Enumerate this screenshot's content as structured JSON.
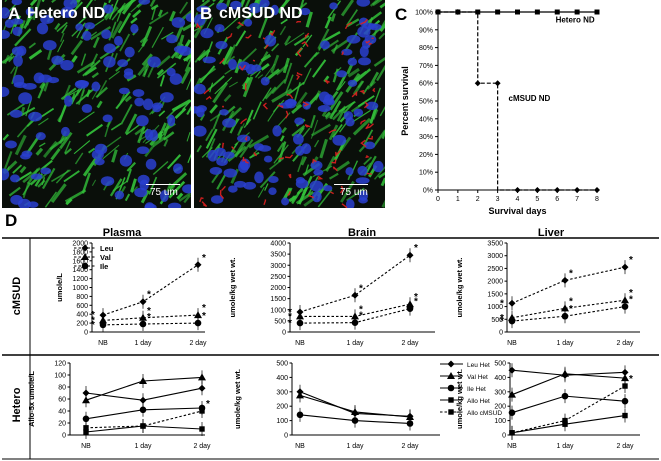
{
  "panel_a": {
    "letter": "A",
    "title": "Hetero ND",
    "scale_label": "75 um"
  },
  "panel_b": {
    "letter": "B",
    "title": "cMSUD ND",
    "scale_label": "75 um"
  },
  "colors": {
    "nuclei": "#2a3fd0",
    "green": "#33c23a",
    "red": "#e02020",
    "background": "#0a0f0a"
  },
  "chart_data": [
    {
      "id": "C",
      "type": "line",
      "title": "",
      "xlabel": "Survival days",
      "ylabel": "Percent survival",
      "xlim": [
        0,
        8
      ],
      "ylim": [
        0,
        100
      ],
      "x_ticks": [
        "0",
        "1",
        "2",
        "3",
        "4",
        "5",
        "6",
        "7",
        "8"
      ],
      "y_ticks": [
        "0%",
        "10%",
        "20%",
        "30%",
        "40%",
        "50%",
        "60%",
        "70%",
        "80%",
        "90%",
        "100%"
      ],
      "series": [
        {
          "name": "Hetero ND",
          "style": "solid",
          "marker": "square",
          "x": [
            0,
            1,
            2,
            3,
            4,
            5,
            6,
            7,
            8
          ],
          "y": [
            100,
            100,
            100,
            100,
            100,
            100,
            100,
            100,
            100
          ]
        },
        {
          "name": "cMSUD ND",
          "style": "dashed",
          "marker": "diamond",
          "step_x": [
            0,
            2,
            2,
            3,
            3,
            8
          ],
          "step_y": [
            100,
            100,
            60,
            60,
            0,
            0
          ],
          "x": [
            0,
            1,
            2,
            3,
            4,
            5,
            6,
            7,
            8
          ],
          "y": [
            100,
            100,
            60,
            60,
            0,
            0,
            0,
            0,
            0
          ]
        }
      ]
    },
    {
      "id": "D-cMSUD-plasma",
      "type": "line",
      "section": "Plasma",
      "row": "cMSUD",
      "categories": [
        "NB",
        "1 day",
        "2 day"
      ],
      "ylabel": "umole/L",
      "ylim": [
        0,
        2000
      ],
      "y_ticks": [
        "0",
        "200",
        "400",
        "600",
        "800",
        "1000",
        "1200",
        "1400",
        "1600",
        "1800",
        "2000"
      ],
      "series": [
        {
          "name": "Leu",
          "marker": "diamond",
          "values": [
            380,
            680,
            1510
          ],
          "stars": [
            true,
            true,
            true
          ]
        },
        {
          "name": "Val",
          "marker": "triangle",
          "values": [
            260,
            320,
            380
          ],
          "stars": [
            true,
            true,
            true
          ]
        },
        {
          "name": "Ile",
          "marker": "circle",
          "values": [
            160,
            180,
            200
          ],
          "stars": [
            true,
            true,
            true
          ]
        }
      ]
    },
    {
      "id": "D-cMSUD-brain",
      "type": "line",
      "section": "Brain",
      "row": "cMSUD",
      "categories": [
        "NB",
        "1 day",
        "2 day"
      ],
      "ylabel": "umole/kg wet wt.",
      "ylim": [
        0,
        4000
      ],
      "y_ticks": [
        "0",
        "500",
        "1000",
        "1500",
        "2000",
        "2500",
        "3000",
        "3500",
        "4000"
      ],
      "series": [
        {
          "name": "Leu",
          "marker": "diamond",
          "values": [
            900,
            1650,
            3450
          ],
          "stars": [
            true,
            true,
            true
          ]
        },
        {
          "name": "Val",
          "marker": "triangle",
          "values": [
            700,
            700,
            1250
          ],
          "stars": [
            true,
            true,
            true
          ]
        },
        {
          "name": "Ile",
          "marker": "circle",
          "values": [
            400,
            420,
            1050
          ],
          "stars": [
            true,
            true,
            true
          ]
        }
      ]
    },
    {
      "id": "D-cMSUD-liver",
      "type": "line",
      "section": "Liver",
      "row": "cMSUD",
      "categories": [
        "NB",
        "1 day",
        "2 day"
      ],
      "ylabel": "umole/kg wet wt.",
      "ylim": [
        0,
        3500
      ],
      "y_ticks": [
        "0",
        "500",
        "1000",
        "1500",
        "2000",
        "2500",
        "3000",
        "3500"
      ],
      "series": [
        {
          "name": "Leu",
          "marker": "diamond",
          "values": [
            1130,
            2030,
            2550
          ],
          "stars": [
            true,
            true,
            true
          ]
        },
        {
          "name": "Val",
          "marker": "triangle",
          "values": [
            560,
            930,
            1250
          ],
          "stars": [
            true,
            true,
            true
          ]
        },
        {
          "name": "Ile",
          "marker": "circle",
          "values": [
            430,
            620,
            1000
          ],
          "stars": [
            true,
            true,
            true
          ]
        }
      ]
    },
    {
      "id": "D-Hetero-plasma",
      "type": "line",
      "row": "Hetero",
      "categories": [
        "NB",
        "1 day",
        "2 day"
      ],
      "ylabel": "Allo-5x umole/L",
      "ylim": [
        0,
        120
      ],
      "y_ticks": [
        "0",
        "20",
        "40",
        "60",
        "80",
        "100",
        "120"
      ],
      "series": [
        {
          "name": "Leu Het",
          "marker": "diamond",
          "values": [
            70,
            58,
            78
          ]
        },
        {
          "name": "Val Het",
          "marker": "triangle",
          "values": [
            58,
            90,
            96
          ]
        },
        {
          "name": "Ile Het",
          "marker": "circle",
          "values": [
            27,
            42,
            45
          ]
        },
        {
          "name": "Allo Het",
          "marker": "square",
          "values": [
            5,
            15,
            10
          ]
        },
        {
          "name": "Allo cMSUD",
          "marker": "square",
          "dashed": true,
          "values": [
            12,
            15,
            40
          ],
          "stars": [
            false,
            false,
            true
          ]
        }
      ]
    },
    {
      "id": "D-Hetero-brain",
      "type": "line",
      "row": "Hetero",
      "categories": [
        "NB",
        "1 day",
        "2 day"
      ],
      "ylabel": "umole/kg wet wt.",
      "ylim": [
        0,
        500
      ],
      "y_ticks": [
        "0",
        "100",
        "200",
        "300",
        "400",
        "500"
      ],
      "legend": [
        "Leu Het",
        "Val Het",
        "Ile Het",
        "Allo Het",
        "Allo cMSUD"
      ],
      "series": [
        {
          "name": "Leu Het",
          "marker": "diamond",
          "values": [
            300,
            150,
            130
          ]
        },
        {
          "name": "Val Het",
          "marker": "triangle",
          "values": [
            275,
            160,
            125
          ]
        },
        {
          "name": "Ile Het",
          "marker": "circle",
          "values": [
            140,
            100,
            80
          ]
        }
      ]
    },
    {
      "id": "D-Hetero-liver",
      "type": "line",
      "row": "Hetero",
      "categories": [
        "NB",
        "1 day",
        "2 day"
      ],
      "ylabel": "umole/kg wet wt.",
      "ylim": [
        0,
        500
      ],
      "y_ticks": [
        "0",
        "100",
        "200",
        "300",
        "400",
        "500"
      ],
      "series": [
        {
          "name": "Leu Het",
          "marker": "diamond",
          "values": [
            450,
            415,
            435
          ]
        },
        {
          "name": "Val Het",
          "marker": "triangle",
          "values": [
            280,
            425,
            395
          ]
        },
        {
          "name": "Ile Het",
          "marker": "circle",
          "values": [
            155,
            270,
            235
          ]
        },
        {
          "name": "Allo Het",
          "marker": "square",
          "values": [
            15,
            75,
            135
          ]
        },
        {
          "name": "Allo cMSUD",
          "marker": "square",
          "dashed": true,
          "values": [
            15,
            100,
            340
          ],
          "stars": [
            false,
            false,
            true
          ]
        }
      ]
    }
  ],
  "panel_d": {
    "letter": "D",
    "sections": [
      "Plasma",
      "Brain",
      "Liver"
    ],
    "row_labels": [
      "cMSUD",
      "Hetero"
    ],
    "legend_cmsud": [
      "Leu",
      "Val",
      "Ile"
    ],
    "star": "*"
  }
}
